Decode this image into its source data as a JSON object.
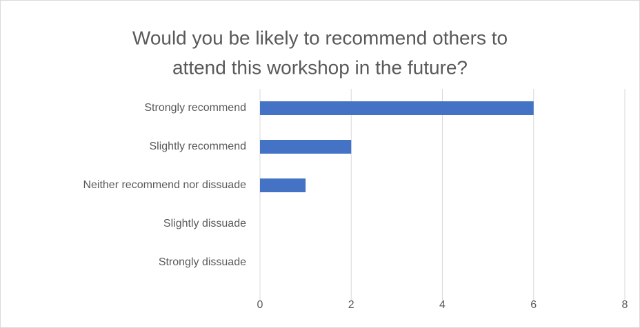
{
  "chart_data": {
    "type": "bar",
    "orientation": "horizontal",
    "title": [
      "Would you be likely to recommend others to",
      "attend this workshop in the future?"
    ],
    "categories": [
      "Strongly recommend",
      "Slightly recommend",
      "Neither recommend nor dissuade",
      "Slightly dissuade",
      "Strongly dissuade"
    ],
    "values": [
      6,
      2,
      1,
      0,
      0
    ],
    "color": "#4472c4",
    "xlim": [
      0,
      8
    ],
    "xticks": [
      0,
      2,
      4,
      6,
      8
    ],
    "grid": true
  }
}
